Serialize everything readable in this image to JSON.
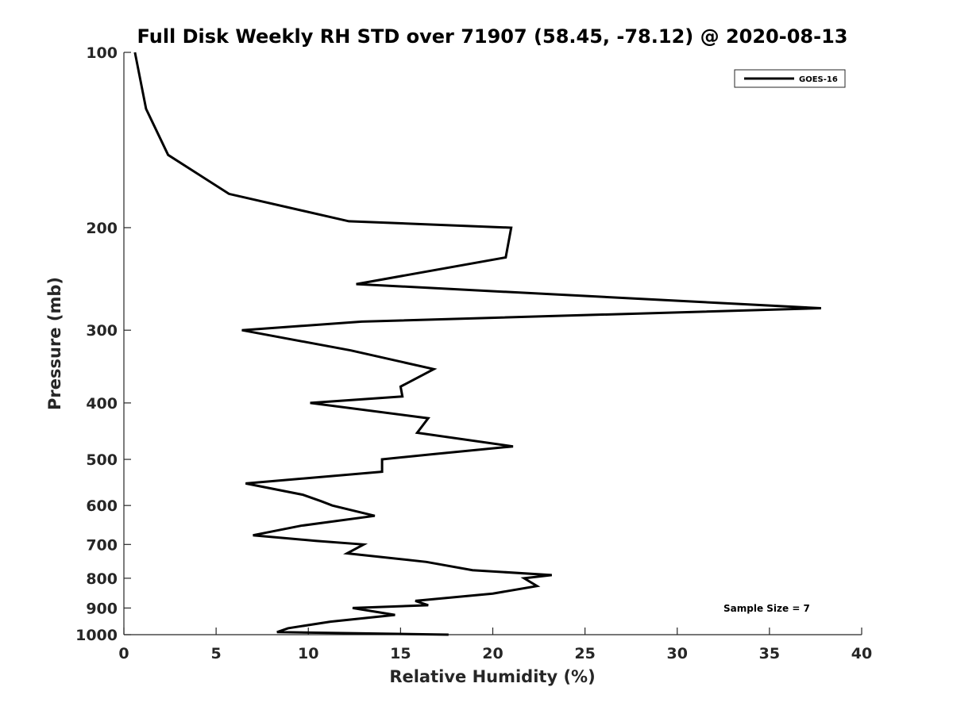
{
  "chart_data": {
    "type": "line",
    "title": "Full Disk Weekly RH STD over 71907 (58.45, -78.12) @ 2020-08-13",
    "xlabel": "Relative Humidity (%)",
    "ylabel": "Pressure (mb)",
    "xlim": [
      0,
      40
    ],
    "ylim": [
      100,
      1000
    ],
    "y_scale": "log",
    "y_reversed": true,
    "x_ticks": [
      0,
      5,
      10,
      15,
      20,
      25,
      30,
      35,
      40
    ],
    "y_ticks": [
      100,
      200,
      300,
      400,
      500,
      600,
      700,
      800,
      900,
      1000
    ],
    "grid": false,
    "legend_position": "top-right",
    "series": [
      {
        "name": "GOES-16",
        "color": "#000000",
        "points": [
          [
            0.6,
            100
          ],
          [
            1.2,
            125
          ],
          [
            2.4,
            150
          ],
          [
            5.7,
            175
          ],
          [
            12.2,
            195
          ],
          [
            21.0,
            200
          ],
          [
            20.7,
            225
          ],
          [
            12.6,
            250
          ],
          [
            37.8,
            275
          ],
          [
            12.9,
            290
          ],
          [
            6.4,
            300
          ],
          [
            12.3,
            325
          ],
          [
            16.8,
            350
          ],
          [
            15.0,
            375
          ],
          [
            15.1,
            390
          ],
          [
            10.1,
            400
          ],
          [
            16.5,
            425
          ],
          [
            15.9,
            450
          ],
          [
            21.1,
            475
          ],
          [
            16.7,
            490
          ],
          [
            14.0,
            500
          ],
          [
            14.0,
            525
          ],
          [
            6.6,
            550
          ],
          [
            9.7,
            575
          ],
          [
            10.7,
            590
          ],
          [
            11.3,
            600
          ],
          [
            13.6,
            625
          ],
          [
            9.6,
            650
          ],
          [
            7.0,
            675
          ],
          [
            10.4,
            690
          ],
          [
            13.0,
            700
          ],
          [
            12.1,
            725
          ],
          [
            16.4,
            750
          ],
          [
            18.9,
            775
          ],
          [
            23.2,
            790
          ],
          [
            21.7,
            800
          ],
          [
            22.4,
            825
          ],
          [
            20.0,
            850
          ],
          [
            15.8,
            875
          ],
          [
            16.5,
            890
          ],
          [
            12.4,
            900
          ],
          [
            14.7,
            925
          ],
          [
            11.2,
            950
          ],
          [
            8.9,
            975
          ],
          [
            8.3,
            990
          ],
          [
            17.6,
            1000
          ]
        ]
      }
    ],
    "annotations": [
      "Sample Size = 7"
    ]
  }
}
